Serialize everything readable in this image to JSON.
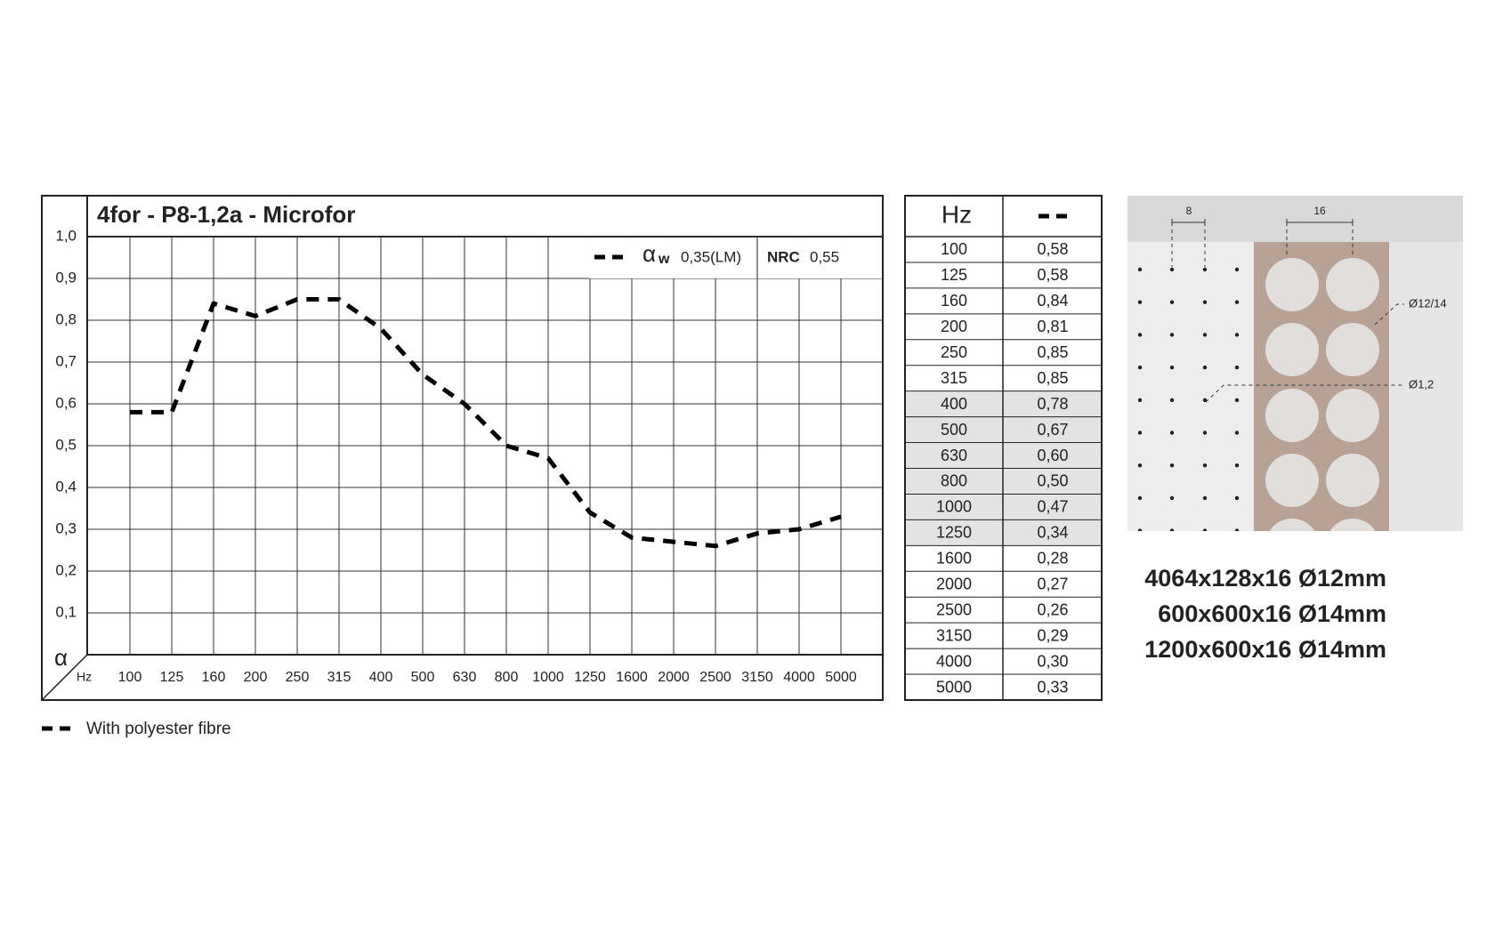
{
  "chart_data": {
    "type": "line",
    "title": "4for - P8-1,2a - Microfor",
    "x_label": "Hz",
    "y_label": "α",
    "categories": [
      "100",
      "125",
      "160",
      "200",
      "250",
      "315",
      "400",
      "500",
      "630",
      "800",
      "1000",
      "1250",
      "1600",
      "2000",
      "2500",
      "3150",
      "4000",
      "5000"
    ],
    "series": [
      {
        "name": "With polyester fibre",
        "color": "#000000",
        "values": [
          0.58,
          0.58,
          0.84,
          0.81,
          0.85,
          0.85,
          0.78,
          0.67,
          0.6,
          0.5,
          0.47,
          0.34,
          0.28,
          0.27,
          0.26,
          0.29,
          0.3,
          0.33
        ]
      }
    ],
    "ylim": [
      0,
      1
    ],
    "yticks": [
      {
        "value": 0.1,
        "label": "0,1"
      },
      {
        "value": 0.2,
        "label": "0,2"
      },
      {
        "value": 0.3,
        "label": "0,3"
      },
      {
        "value": 0.4,
        "label": "0,4"
      },
      {
        "value": 0.5,
        "label": "0,5"
      },
      {
        "value": 0.6,
        "label": "0,6"
      },
      {
        "value": 0.7,
        "label": "0,7"
      },
      {
        "value": 0.8,
        "label": "0,8"
      },
      {
        "value": 0.9,
        "label": "0,9"
      },
      {
        "value": 1.0,
        "label": "1,0"
      }
    ],
    "grid": true,
    "annotations": {
      "alpha_w_symbol": "α",
      "alpha_w_sub": "w",
      "alpha_w": "0,35(LM)",
      "nrc_label": "NRC",
      "nrc": "0,55"
    }
  },
  "table": {
    "header": "Hz",
    "rows": [
      [
        "100",
        "0,58"
      ],
      [
        "125",
        "0,58"
      ],
      [
        "160",
        "0,84"
      ],
      [
        "200",
        "0,81"
      ],
      [
        "250",
        "0,85"
      ],
      [
        "315",
        "0,85"
      ],
      [
        "400",
        "0,78"
      ],
      [
        "500",
        "0,67"
      ],
      [
        "630",
        "0,60"
      ],
      [
        "800",
        "0,50"
      ],
      [
        "1000",
        "0,47"
      ],
      [
        "1250",
        "0,34"
      ],
      [
        "1600",
        "0,28"
      ],
      [
        "2000",
        "0,27"
      ],
      [
        "2500",
        "0,26"
      ],
      [
        "3150",
        "0,29"
      ],
      [
        "4000",
        "0,30"
      ],
      [
        "5000",
        "0,33"
      ]
    ]
  },
  "diagram": {
    "labels": [
      "8",
      "16",
      "Ø12/14",
      "Ø1,2"
    ]
  },
  "sizes": [
    "4064x128x16 Ø12mm",
    "600x600x16 Ø14mm",
    "1200x600x16 Ø14mm"
  ]
}
